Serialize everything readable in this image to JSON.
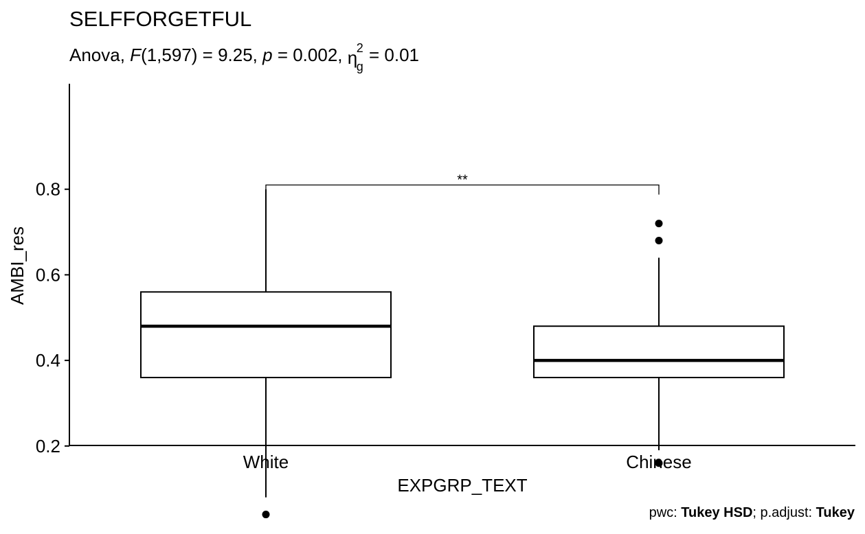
{
  "chart_data": {
    "type": "box",
    "title": "SELFFORGETFUL",
    "subtitle": {
      "prefix": "Anova, ",
      "stat_name": "F",
      "stat_args": "(1,597) = 9.25, ",
      "p_name": "p",
      "p_value": " = 0.002, ",
      "eta_symbol": "η",
      "eta_sup": "2",
      "eta_sub": "g",
      "eta_value": " = 0.01"
    },
    "xlabel": "EXPGRP_TEXT",
    "ylabel": "AMBI_res",
    "categories": [
      "White",
      "Chinese"
    ],
    "ylim": [
      0,
      0.84
    ],
    "yticks": [
      0.2,
      0.4,
      0.6,
      0.8
    ],
    "ytick_labels": [
      "0.2",
      "0.4",
      "0.6",
      "0.8"
    ],
    "boxes": [
      {
        "category": "White",
        "whisker_low": 0.08,
        "q1": 0.36,
        "median": 0.48,
        "q3": 0.56,
        "whisker_high": 0.8,
        "outliers": [
          0.04
        ]
      },
      {
        "category": "Chinese",
        "whisker_low": 0.2,
        "q1": 0.36,
        "median": 0.4,
        "q3": 0.48,
        "whisker_high": 0.64,
        "outliers": [
          0.72,
          0.68,
          0.16
        ]
      }
    ],
    "comparison": {
      "from": "White",
      "to": "Chinese",
      "y": 0.81,
      "label": "**"
    },
    "caption": {
      "pwc_label": "pwc: ",
      "pwc_value": "Tukey HSD",
      "sep": "; p.adjust: ",
      "adjust_value": "Tukey"
    }
  }
}
